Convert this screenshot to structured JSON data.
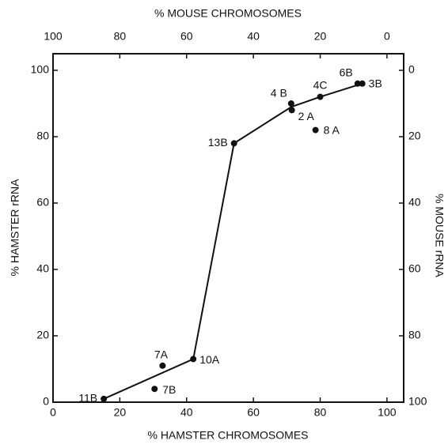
{
  "chart_data": {
    "type": "scatter",
    "xlabel": "% HAMSTER CHROMOSOMES",
    "x2label": "% MOUSE CHROMOSOMES",
    "ylabel": "% HAMSTER rRNA",
    "y2label": "% MOUSE rRNA",
    "xlim": [
      0,
      105
    ],
    "xticks": [
      0,
      20,
      40,
      60,
      80,
      100
    ],
    "x2lim": [
      100,
      -5
    ],
    "x2ticks": [
      100,
      80,
      60,
      40,
      20,
      0
    ],
    "ylim": [
      0,
      105
    ],
    "yticks": [
      0,
      20,
      40,
      60,
      80,
      100
    ],
    "y2lim": [
      100,
      -5
    ],
    "y2ticks": [
      0,
      20,
      40,
      60,
      80,
      100
    ],
    "series": [
      {
        "color": "#111111",
        "labels": [
          "11B",
          "7B",
          "7A",
          "10A",
          "13B",
          "4 B",
          "2 A",
          "8 A",
          "4C",
          "6B",
          "3B"
        ],
        "x": [
          15.2,
          30.4,
          32.8,
          42,
          54.2,
          71.3,
          71.5,
          78.6,
          80,
          91.2,
          92.6
        ],
        "values": [
          1,
          4,
          11,
          13,
          78,
          90,
          88,
          82,
          92,
          96,
          96
        ]
      }
    ],
    "line": {
      "color": "#111111",
      "x": [
        15.2,
        42,
        54.2,
        71.4,
        80,
        92.6
      ],
      "values": [
        1,
        13,
        78,
        89,
        92,
        96
      ]
    }
  }
}
